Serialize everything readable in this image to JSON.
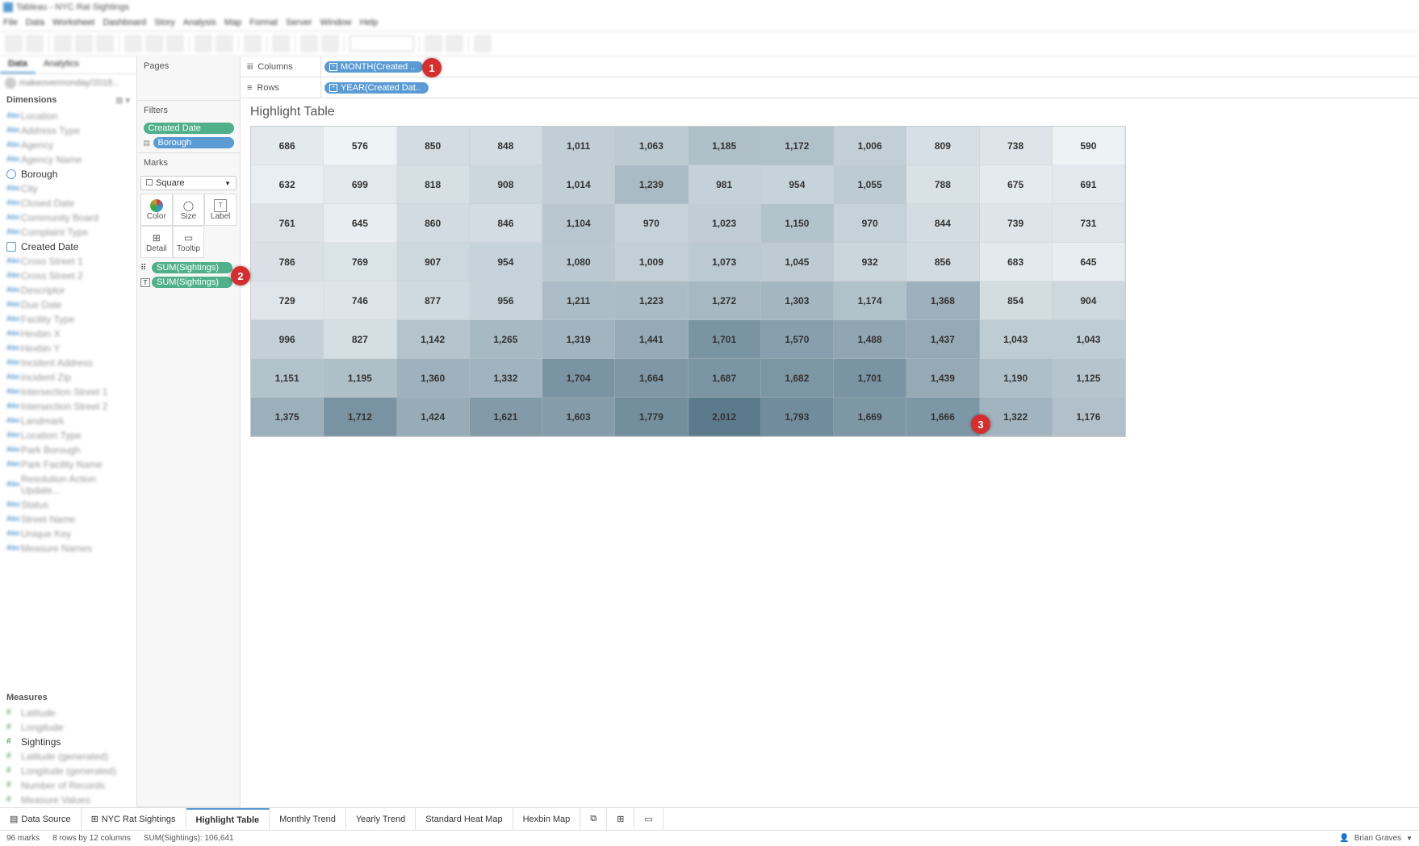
{
  "title": "Tableau - NYC Rat Sightings",
  "menus": [
    "File",
    "Data",
    "Worksheet",
    "Dashboard",
    "Story",
    "Analysis",
    "Map",
    "Format",
    "Server",
    "Window",
    "Help"
  ],
  "left_tabs": [
    "Data",
    "Analytics"
  ],
  "search_placeholder": "makeovermonday/2018...",
  "dimensions_header": "Dimensions",
  "measures_header": "Measures",
  "blurred_fields_top": [
    "Location",
    "Address Type",
    "Agency",
    "Agency Name"
  ],
  "clear_fields": {
    "borough": "Borough"
  },
  "blurred_fields_mid": [
    "City",
    "Closed Date",
    "Community Board",
    "Complaint Type"
  ],
  "clear_fields2": {
    "created_date": "Created Date"
  },
  "blurred_fields_bottom": [
    "Cross Street 1",
    "Cross Street 2",
    "Descriptor",
    "Due Date",
    "Facility Type",
    "Hexbin X",
    "Hexbin Y",
    "Incident Address",
    "Incident Zip",
    "Intersection Street 1",
    "Intersection Street 2",
    "Landmark",
    "Location Type",
    "Park Borough",
    "Park Facility Name",
    "Resolution Action Update...",
    "Status",
    "Street Name",
    "Unique Key",
    "Measure Names"
  ],
  "blurred_measures_top": [
    "Latitude",
    "Longitude"
  ],
  "clear_measures": {
    "sightings": "Sightings"
  },
  "blurred_measures_bottom": [
    "Latitude (generated)",
    "Longitude (generated)",
    "Number of Records",
    "Measure Values"
  ],
  "pages_label": "Pages",
  "filters_label": "Filters",
  "marks_label": "Marks",
  "mark_type": "Square",
  "mark_buttons": {
    "color": "Color",
    "size": "Size",
    "label": "Label",
    "detail": "Detail",
    "tooltip": "Tooltip"
  },
  "pills": {
    "filter_created_date": "Created Date",
    "filter_borough": "Borough",
    "marks_color": "SUM(Sightings)",
    "marks_label": "SUM(Sightings)",
    "columns": "MONTH(Created ..",
    "rows": "YEAR(Created Dat.."
  },
  "columns_label": "Columns",
  "rows_label": "Rows",
  "viz_title": "Highlight Table",
  "heat_colors": {
    "min": 576,
    "max": 2012,
    "light": "#eef3f6",
    "dark": "#5b7a8c"
  },
  "heat_data": [
    [
      686,
      576,
      850,
      848,
      1011,
      1063,
      1185,
      1172,
      1006,
      809,
      738,
      590
    ],
    [
      632,
      699,
      818,
      908,
      1014,
      1239,
      981,
      954,
      1055,
      788,
      675,
      691
    ],
    [
      761,
      645,
      860,
      846,
      1104,
      970,
      1023,
      1150,
      970,
      844,
      739,
      731
    ],
    [
      786,
      769,
      907,
      954,
      1080,
      1009,
      1073,
      1045,
      932,
      856,
      683,
      645
    ],
    [
      729,
      746,
      877,
      956,
      1211,
      1223,
      1272,
      1303,
      1174,
      1368,
      854,
      904
    ],
    [
      996,
      827,
      1142,
      1265,
      1319,
      1441,
      1701,
      1570,
      1488,
      1437,
      1043,
      1043
    ],
    [
      1151,
      1195,
      1360,
      1332,
      1704,
      1664,
      1687,
      1682,
      1701,
      1439,
      1190,
      1125
    ],
    [
      1375,
      1712,
      1424,
      1621,
      1603,
      1779,
      2012,
      1793,
      1669,
      1666,
      1322,
      1176
    ]
  ],
  "bottom_tabs": {
    "data_source": "Data Source",
    "nyc": "NYC Rat Sightings",
    "highlight": "Highlight Table",
    "monthly": "Monthly Trend",
    "yearly": "Yearly Trend",
    "heatmap": "Standard Heat Map",
    "hexbin": "Hexbin Map"
  },
  "status": {
    "marks": "96 marks",
    "rowcol": "8 rows by 12 columns",
    "sum": "SUM(Sightings): 106,641",
    "user": "Brian Graves"
  },
  "annotations": {
    "1": "1",
    "2": "2",
    "3": "3"
  }
}
